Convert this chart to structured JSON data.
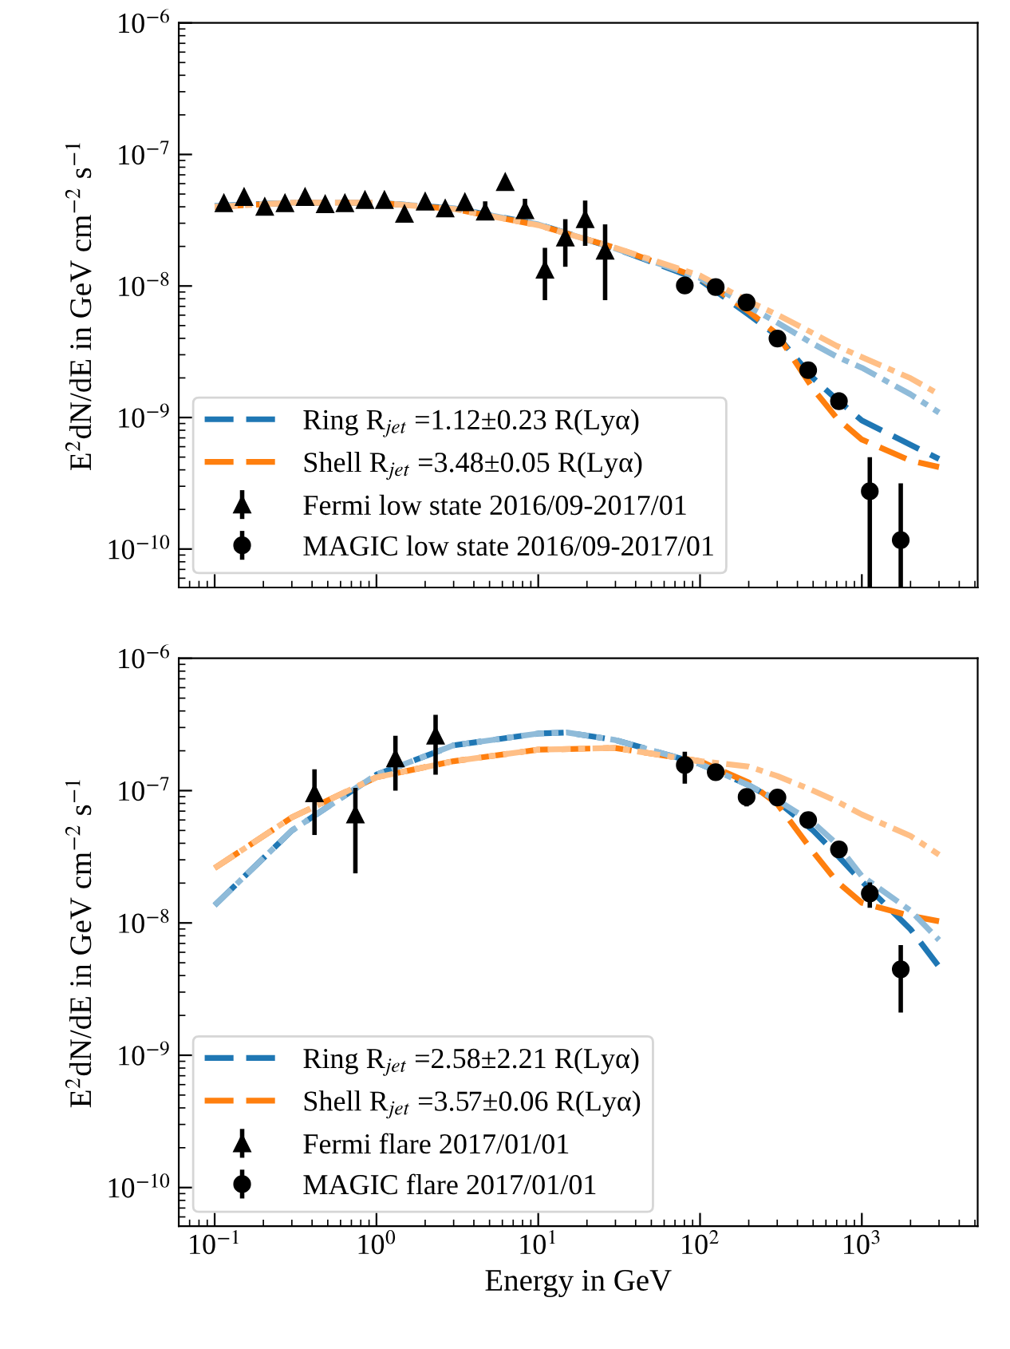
{
  "chart_data": [
    {
      "type": "scatter",
      "ylabel": "E$^{2}$dN/dE in GeV cm$^{−2}$ s$^{−1}$",
      "log": "xy",
      "legend": "bottom left",
      "tick_labels": "y",
      "xlim": [
        0.06,
        5200
      ],
      "ylim": [
        5.1e-11,
        1e-06
      ],
      "xticks": [
        {
          "value": 0.1,
          "label": null
        },
        {
          "value": 1,
          "label": null
        },
        {
          "value": 10,
          "label": null
        },
        {
          "value": 100,
          "label": null
        },
        {
          "value": 1000,
          "label": null
        }
      ],
      "yticks": [
        {
          "value": 1e-10,
          "label": "10$^{−10}$"
        },
        {
          "value": 1e-09,
          "label": "10$^{−9}$"
        },
        {
          "value": 1e-08,
          "label": "10$^{−8}$"
        },
        {
          "value": 1e-07,
          "label": "10$^{−7}$"
        },
        {
          "value": 1e-06,
          "label": "10$^{−6}$"
        }
      ],
      "series": [
        {
          "type": "line",
          "name": "Ring R$_{jet}$ =1.12±0.23 R(Lyα)",
          "color": "#1f77b4",
          "line_style": "dashed",
          "marker": "none",
          "x": [
            0.1,
            0.3,
            1,
            3,
            10,
            30,
            100,
            200,
            300,
            500,
            700,
            1000,
            2000,
            3000
          ],
          "values": [
            4.06e-08,
            4.3e-08,
            4.3e-08,
            3.9e-08,
            2.94e-08,
            1.93e-08,
            1.11e-08,
            6.05e-09,
            4.18e-09,
            1.99e-09,
            1.37e-09,
            9.5e-10,
            6.2e-10,
            4.84e-10
          ]
        },
        {
          "type": "line",
          "name": "Shell R$_{jet}$ =3.48±0.05 R(Lyα)",
          "color": "#ff7f0e",
          "line_style": "dashed",
          "marker": "none",
          "x": [
            0.1,
            0.3,
            1,
            3,
            10,
            30,
            100,
            200,
            300,
            500,
            700,
            1000,
            2000,
            3000
          ],
          "values": [
            4e-08,
            4.3e-08,
            4.3e-08,
            3.85e-08,
            2.9e-08,
            1.95e-08,
            1.15e-08,
            6.4e-09,
            4.3e-09,
            1.65e-09,
            9.9e-10,
            6.8e-10,
            4.7e-10,
            4.2e-10
          ]
        },
        {
          "type": "line",
          "color": "#8fbbd9",
          "line_style": "dashdot",
          "marker": "none",
          "x": [
            0.1,
            0.3,
            1,
            3,
            10,
            30,
            100,
            200,
            300,
            500,
            700,
            1000,
            2000,
            3000
          ],
          "values": [
            4.06e-08,
            4.3e-08,
            4.3e-08,
            3.9e-08,
            2.94e-08,
            1.93e-08,
            1.15e-08,
            6.97e-09,
            5.27e-09,
            3.63e-09,
            2.9e-09,
            2.39e-09,
            1.5e-09,
            1.09e-09
          ]
        },
        {
          "type": "line",
          "color": "#ffbf86",
          "line_style": "dashdot",
          "marker": "none",
          "x": [
            0.1,
            0.3,
            1,
            3,
            10,
            30,
            100,
            200,
            300,
            500,
            700,
            1000,
            2000,
            3000
          ],
          "values": [
            4e-08,
            4.3e-08,
            4.3e-08,
            3.85e-08,
            2.9e-08,
            1.95e-08,
            1.2e-08,
            7.64e-09,
            6.05e-09,
            4.37e-09,
            3.5e-09,
            2.88e-09,
            1.99e-09,
            1.5e-09
          ]
        },
        {
          "name": "Fermi low state 2016/09-2017/01",
          "color": "#000000",
          "marker": "triangle",
          "x": [
            0.114,
            0.152,
            0.204,
            0.272,
            0.362,
            0.482,
            0.638,
            0.849,
            1.12,
            1.49,
            2.0,
            2.66,
            3.52,
            4.7,
            6.25,
            8.28,
            11.0,
            14.7,
            19.5,
            25.9
          ],
          "values": [
            4.26e-08,
            4.75e-08,
            4e-08,
            4.26e-08,
            4.75e-08,
            4.18e-08,
            4.26e-08,
            4.5e-08,
            4.5e-08,
            3.53e-08,
            4.38e-08,
            3.88e-08,
            4.33e-08,
            3.67e-08,
            6.17e-08,
            3.77e-08,
            1.33e-08,
            2.33e-08,
            3.22e-08,
            1.85e-08
          ],
          "errors": [
            null,
            null,
            null,
            null,
            null,
            null,
            null,
            null,
            null,
            null,
            null,
            null,
            null,
            [
              3.3e-08,
              4.4e-08
            ],
            null,
            [
              3.3e-08,
              4.6e-08
            ],
            [
              7.8e-09,
              1.95e-08
            ],
            [
              1.4e-08,
              3.22e-08
            ],
            [
              2.02e-08,
              4.46e-08
            ],
            [
              7.8e-09,
              2.94e-08
            ]
          ]
        },
        {
          "name": "MAGIC low state 2016/09-2017/01",
          "color": "#000000",
          "marker": "circle",
          "x": [
            80.5,
            125,
            194,
            301,
            466,
            722,
            1120,
            1740
          ],
          "values": [
            1.01e-08,
            9.8e-09,
            7.5e-09,
            3.99e-09,
            2.29e-09,
            1.33e-09,
            2.75e-10,
            1.17e-10
          ],
          "errors": [
            [
              8.8e-09,
              1.1e-08
            ],
            null,
            null,
            null,
            null,
            [
              1.15e-09,
              1.55e-09
            ],
            [
              5.1e-11,
              5e-10
            ],
            [
              5.1e-11,
              3.16e-10
            ]
          ]
        }
      ]
    },
    {
      "type": "scatter",
      "xlabel": "Energy in GeV",
      "ylabel": "E$^{2}$dN/dE in GeV cm$^{−2}$ s$^{−1}$",
      "log": "xy",
      "legend": "bottom left",
      "xlim": [
        0.06,
        5200
      ],
      "ylim": [
        5.1e-11,
        1e-06
      ],
      "xticks": [
        {
          "value": 0.1,
          "label": "10$^{−1}$"
        },
        {
          "value": 1,
          "label": "10$^{0}$"
        },
        {
          "value": 10,
          "label": "10$^{1}$"
        },
        {
          "value": 100,
          "label": "10$^{2}$"
        },
        {
          "value": 1000,
          "label": "10$^{3}$"
        }
      ],
      "yticks": [
        {
          "value": 1e-10,
          "label": "10$^{−10}$"
        },
        {
          "value": 1e-09,
          "label": "10$^{−9}$"
        },
        {
          "value": 1e-08,
          "label": "10$^{−8}$"
        },
        {
          "value": 1e-07,
          "label": "10$^{−7}$"
        },
        {
          "value": 1e-06,
          "label": "10$^{−6}$"
        }
      ],
      "series": [
        {
          "type": "line",
          "name": "Ring R$_{jet}$ =2.58±2.21 R(Lyα)",
          "color": "#1f77b4",
          "line_style": "dashed",
          "marker": "none",
          "x": [
            0.1,
            0.3,
            1,
            3,
            10,
            15,
            30,
            100,
            200,
            300,
            500,
            700,
            1000,
            2000,
            3000
          ],
          "values": [
            1.36e-08,
            4.99e-08,
            1.32e-07,
            2.2e-07,
            2.7e-07,
            2.75e-07,
            2.41e-07,
            1.59e-07,
            1.1e-07,
            8.3e-08,
            4.99e-08,
            3.28e-08,
            2.06e-08,
            8.95e-09,
            4.67e-09
          ]
        },
        {
          "type": "line",
          "name": "Shell R$_{jet}$ =3.57±0.06 R(Lyα)",
          "color": "#ff7f0e",
          "line_style": "dashed",
          "marker": "none",
          "x": [
            0.1,
            0.3,
            1,
            3,
            10,
            30,
            100,
            200,
            300,
            500,
            700,
            1000,
            2000,
            3000
          ],
          "values": [
            2.6e-08,
            6.28e-08,
            1.26e-07,
            1.67e-07,
            2.04e-07,
            2.1e-07,
            1.67e-07,
            1.15e-07,
            7.94e-08,
            3.44e-08,
            2.06e-08,
            1.42e-08,
            1.13e-08,
            1.03e-08
          ]
        },
        {
          "type": "line",
          "color": "#8fbbd9",
          "line_style": "dashdot",
          "marker": "none",
          "x": [
            0.1,
            0.3,
            1,
            3,
            10,
            15,
            30,
            100,
            200,
            300,
            500,
            700,
            1000,
            2000,
            3000
          ],
          "values": [
            1.36e-08,
            4.99e-08,
            1.32e-07,
            2.2e-07,
            2.7e-07,
            2.75e-07,
            2.41e-07,
            1.59e-07,
            1.1e-07,
            8.5e-08,
            5.73e-08,
            3.95e-08,
            2.26e-08,
            1.24e-08,
            7.43e-09
          ]
        },
        {
          "type": "line",
          "color": "#ffbf86",
          "line_style": "dashdot",
          "marker": "none",
          "x": [
            0.1,
            0.3,
            1,
            3,
            10,
            30,
            100,
            200,
            300,
            500,
            700,
            1000,
            2000,
            3000
          ],
          "values": [
            2.6e-08,
            6.28e-08,
            1.26e-07,
            1.67e-07,
            2.04e-07,
            2.1e-07,
            1.67e-07,
            1.52e-07,
            1.29e-07,
            1e-07,
            8.3e-08,
            6.6e-08,
            4.54e-08,
            3.28e-08
          ]
        },
        {
          "name": "Fermi flare 2017/01/01",
          "color": "#000000",
          "marker": "triangle",
          "x": [
            0.414,
            0.741,
            1.31,
            2.32
          ],
          "values": [
            9.55e-08,
            6.59e-08,
            1.75e-07,
            2.6e-07
          ],
          "errors": [
            [
              4.62e-08,
              1.45e-07
            ],
            [
              2.37e-08,
              1.05e-07
            ],
            [
              1e-07,
              2.6e-07
            ],
            [
              1.32e-07,
              3.74e-07
            ]
          ]
        },
        {
          "name": "MAGIC flare 2017/01/01",
          "color": "#000000",
          "marker": "circle",
          "x": [
            80.5,
            125,
            194,
            301,
            466,
            722,
            1120,
            1740
          ],
          "values": [
            1.56e-07,
            1.38e-07,
            8.95e-08,
            8.87e-08,
            6e-08,
            3.6e-08,
            1.67e-08,
            4.46e-09
          ],
          "errors": [
            [
              1.13e-07,
              1.97e-07
            ],
            [
              1.2e-07,
              1.58e-07
            ],
            [
              7.6e-08,
              9.9e-08
            ],
            null,
            null,
            [
              3.2e-08,
              4e-08
            ],
            [
              1.3e-08,
              2.02e-08
            ],
            [
              2.1e-09,
              6.8e-09
            ]
          ]
        }
      ]
    }
  ]
}
